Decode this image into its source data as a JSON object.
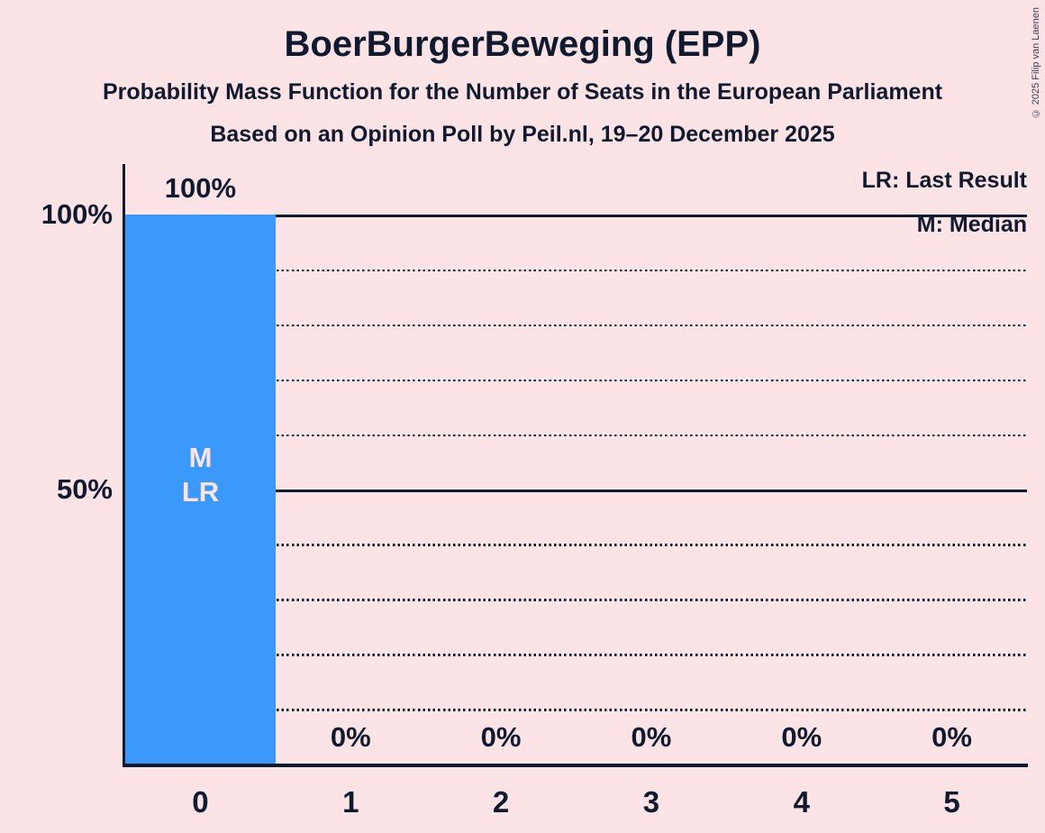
{
  "title": "BoerBurgerBeweging (EPP)",
  "subtitle1": "Probability Mass Function for the Number of Seats in the European Parliament",
  "subtitle2": "Based on an Opinion Poll by Peil.nl, 19–20 December 2025",
  "copyright": "© 2025 Filip van Laenen",
  "legend": {
    "lr": "LR: Last Result",
    "m": "M: Median"
  },
  "colors": {
    "background": "#fce4e6",
    "bar": "#3b99fc",
    "text": "#101a2e",
    "bar_annotation_text": "#fce4e6"
  },
  "chart_data": {
    "type": "bar",
    "title": "BoerBurgerBeweging (EPP)",
    "categories": [
      "0",
      "1",
      "2",
      "3",
      "4",
      "5"
    ],
    "values": [
      100,
      0,
      0,
      0,
      0,
      0
    ],
    "value_labels": [
      "100%",
      "0%",
      "0%",
      "0%",
      "0%",
      "0%"
    ],
    "ylim": [
      0,
      100
    ],
    "y_ticks": [
      {
        "percent": 100,
        "label": "100%"
      },
      {
        "percent": 50,
        "label": "50%"
      }
    ],
    "gridlines": [
      {
        "percent": 100,
        "style": "solid"
      },
      {
        "percent": 90,
        "style": "dotted"
      },
      {
        "percent": 80,
        "style": "dotted"
      },
      {
        "percent": 70,
        "style": "dotted"
      },
      {
        "percent": 60,
        "style": "dotted"
      },
      {
        "percent": 50,
        "style": "solid"
      },
      {
        "percent": 40,
        "style": "dotted"
      },
      {
        "percent": 30,
        "style": "dotted"
      },
      {
        "percent": 20,
        "style": "dotted"
      },
      {
        "percent": 10,
        "style": "dotted"
      }
    ],
    "legend_position": "top-right",
    "median_seat": "0",
    "last_result_seat": "0",
    "bar_annotation": {
      "seat": "0",
      "lines": [
        "M",
        "LR"
      ]
    }
  }
}
